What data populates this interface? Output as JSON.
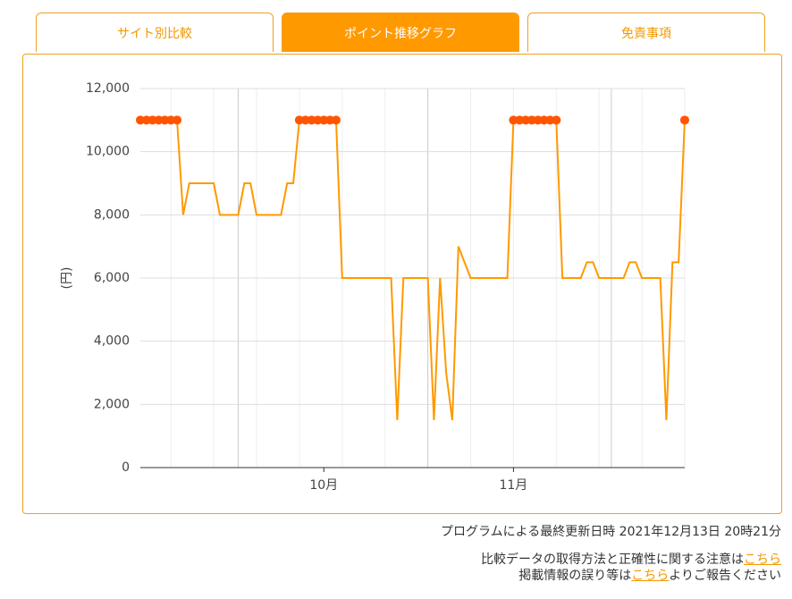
{
  "tabs": [
    "サイト別比較",
    "ポイント推移グラフ",
    "免責事項"
  ],
  "chart_data": {
    "type": "line",
    "ylabel": "(円)",
    "categories": [
      null,
      null,
      null,
      null,
      null,
      null,
      null,
      null,
      null,
      null,
      null,
      null,
      null,
      null,
      null,
      null,
      null,
      null,
      null,
      null,
      null,
      null,
      null,
      null,
      null,
      null,
      null,
      null,
      null,
      null,
      "10月",
      null,
      null,
      null,
      null,
      null,
      null,
      null,
      null,
      null,
      null,
      null,
      null,
      null,
      null,
      null,
      null,
      null,
      null,
      null,
      null,
      null,
      null,
      null,
      null,
      null,
      null,
      null,
      null,
      null,
      null,
      "11月",
      null,
      null,
      null,
      null,
      null,
      null,
      null,
      null,
      null,
      null,
      null,
      null,
      null,
      null,
      null,
      null,
      null,
      null,
      null,
      null,
      null,
      null,
      null,
      null,
      null,
      null,
      null,
      null
    ],
    "series": [
      {
        "color": "#ff9900",
        "values": [
          11000,
          11000,
          11000,
          11000,
          11000,
          11000,
          11000,
          8000,
          9000,
          9000,
          9000,
          9000,
          9000,
          8000,
          8000,
          8000,
          8000,
          9000,
          9000,
          8000,
          8000,
          8000,
          8000,
          8000,
          9000,
          9000,
          11000,
          11000,
          11000,
          11000,
          11000,
          11000,
          11000,
          6000,
          6000,
          6000,
          6000,
          6000,
          6000,
          6000,
          6000,
          6000,
          1500,
          6000,
          6000,
          6000,
          6000,
          6000,
          1500,
          6000,
          3000,
          1500,
          7000,
          6500,
          6000,
          6000,
          6000,
          6000,
          6000,
          6000,
          6000,
          11000,
          11000,
          11000,
          11000,
          11000,
          11000,
          11000,
          11000,
          6000,
          6000,
          6000,
          6000,
          6500,
          6500,
          6000,
          6000,
          6000,
          6000,
          6000,
          6500,
          6500,
          6000,
          6000,
          6000,
          6000,
          1500,
          6500,
          6500,
          11000
        ]
      }
    ],
    "marker_color": "#ff5500",
    "ylim": [
      0,
      12000
    ],
    "yticks": [
      0,
      {
        "value": 2000,
        "label": "2,000"
      },
      {
        "value": 4000,
        "label": "4,000"
      },
      {
        "value": 6000,
        "label": "6,000"
      },
      {
        "value": 8000,
        "label": "8,000"
      },
      {
        "value": 10000,
        "label": "10,000"
      },
      {
        "value": 12000,
        "label": "12,000"
      }
    ],
    "grid": true
  },
  "footer": {
    "updated": "プログラムによる最終更新日時 2021年12月13日 20時21分",
    "note1": "比較データの取得方法と正確性に関する注意は",
    "link1": "こちら",
    "note2a": "掲載情報の誤り等は",
    "link2": "こちら",
    "note2b": "よりご報告ください"
  }
}
